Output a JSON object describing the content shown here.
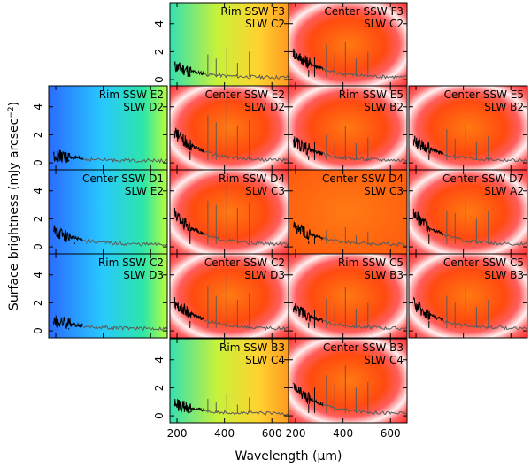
{
  "chart_data": {
    "type": "line",
    "title": "",
    "xlabel": "Wavelength (μm)",
    "ylabel": "Surface brightness (mJy arcsec^-2)",
    "xlabel_parts": {
      "pre": "Wavelength (",
      "mu": "μ",
      "post": "m)"
    },
    "ylabel_parts": {
      "pre": "Surface brightness (mJy arcsec",
      "exp": "−2",
      "post": ")"
    },
    "xlim": [
      170,
      670
    ],
    "ylim": [
      -0.5,
      5.5
    ],
    "xticks": [
      200,
      400,
      600
    ],
    "yticks": [
      0,
      2,
      4
    ],
    "colors": {
      "ssw_line": "#000000",
      "slw_line": "#5a5a5a",
      "hot": "#ff2828",
      "warm": "#ff7a12",
      "cool": "#28c8ff"
    },
    "rows": [
      1,
      2,
      3,
      4,
      5
    ],
    "cols": [
      1,
      2,
      3,
      4
    ],
    "panels": [
      {
        "id": "p11",
        "row": 1,
        "col": 2,
        "line1": "Rim SSW F3",
        "line2": "SLW C2",
        "bg": "yellow-green",
        "cont": 0.8,
        "peaks": [
          0.4,
          1.3,
          1.8,
          1.5,
          2.3,
          1.2,
          2.0
        ]
      },
      {
        "id": "p12",
        "row": 1,
        "col": 3,
        "line1": "Center SSW F3",
        "line2": "SLW C2",
        "bg": "shell",
        "cont": 1.8,
        "peaks": [
          0.7,
          1.6,
          2.5,
          1.8,
          2.7,
          1.5,
          2.0
        ]
      },
      {
        "id": "p21",
        "row": 2,
        "col": 1,
        "line1": "Rim SSW E2",
        "line2": "SLW D2",
        "bg": "blue-green",
        "cont": 0.4,
        "peaks": [
          0.1,
          0.2,
          0.2,
          0.2,
          0.3,
          0.1,
          0.2
        ]
      },
      {
        "id": "p22",
        "row": 2,
        "col": 2,
        "line1": "Center SSW E2",
        "line2": "SLW D2",
        "bg": "shell",
        "cont": 2.0,
        "peaks": [
          0.8,
          2.6,
          3.4,
          2.9,
          4.8,
          2.6,
          3.0
        ]
      },
      {
        "id": "p23",
        "row": 2,
        "col": 3,
        "line1": "Rim SSW E5",
        "line2": "SLW B2",
        "bg": "shell",
        "cont": 1.4,
        "peaks": [
          0.5,
          1.5,
          2.1,
          1.6,
          2.6,
          1.4,
          1.8
        ]
      },
      {
        "id": "p24",
        "row": 2,
        "col": 4,
        "line1": "Center SSW E5",
        "line2": "SLW B2",
        "bg": "shell",
        "cont": 1.5,
        "peaks": [
          0.6,
          1.6,
          2.4,
          1.7,
          2.8,
          1.5,
          1.9
        ]
      },
      {
        "id": "p31",
        "row": 3,
        "col": 1,
        "line1": "Center SSW D1",
        "line2": "SLW E2",
        "bg": "blue-green",
        "cont": 1.0,
        "peaks": [
          0.2,
          0.3,
          0.3,
          0.2,
          0.3,
          0.2,
          0.2
        ]
      },
      {
        "id": "p32",
        "row": 3,
        "col": 2,
        "line1": "Rim SSW D4",
        "line2": "SLW C3",
        "bg": "shell",
        "cont": 2.2,
        "peaks": [
          1.2,
          2.8,
          3.3,
          3.0,
          4.4,
          2.8,
          3.1
        ]
      },
      {
        "id": "p33",
        "row": 3,
        "col": 3,
        "line1": "Center SSW D4",
        "line2": "SLW C3",
        "bg": "orange",
        "cont": 1.4,
        "peaks": [
          0.4,
          0.8,
          1.2,
          1.0,
          1.4,
          0.8,
          1.1
        ]
      },
      {
        "id": "p34",
        "row": 3,
        "col": 4,
        "line1": "Center SSW D7",
        "line2": "SLW A2",
        "bg": "shell",
        "cont": 2.2,
        "peaks": [
          0.9,
          1.9,
          2.6,
          2.4,
          3.3,
          2.0,
          2.6
        ]
      },
      {
        "id": "p41",
        "row": 4,
        "col": 1,
        "line1": "Rim SSW C2",
        "line2": "SLW D3",
        "bg": "blue-green",
        "cont": 0.6,
        "peaks": [
          0.1,
          0.2,
          0.2,
          0.2,
          0.3,
          0.1,
          0.2
        ]
      },
      {
        "id": "p42",
        "row": 4,
        "col": 2,
        "line1": "Center SSW C2",
        "line2": "SLW D3",
        "bg": "shell",
        "cont": 1.9,
        "peaks": [
          0.7,
          2.4,
          3.2,
          2.5,
          4.0,
          2.2,
          2.7
        ]
      },
      {
        "id": "p43",
        "row": 4,
        "col": 3,
        "line1": "Rim SSW C5",
        "line2": "SLW B3",
        "bg": "shell",
        "cont": 1.6,
        "peaks": [
          0.6,
          1.5,
          2.3,
          1.8,
          3.1,
          1.6,
          2.0
        ]
      },
      {
        "id": "p44",
        "row": 4,
        "col": 4,
        "line1": "Center SSW C5",
        "line2": "SLW B3",
        "bg": "shell",
        "cont": 1.8,
        "peaks": [
          0.7,
          1.7,
          2.5,
          2.0,
          3.2,
          1.7,
          2.2
        ]
      },
      {
        "id": "p52",
        "row": 5,
        "col": 2,
        "line1": "Rim SSW B3",
        "line2": "SLW C4",
        "bg": "yellow-green",
        "cont": 0.7,
        "peaks": [
          0.3,
          0.8,
          1.2,
          1.0,
          1.6,
          0.8,
          1.3
        ]
      },
      {
        "id": "p53",
        "row": 5,
        "col": 3,
        "line1": "Center SSW B3",
        "line2": "SLW C4",
        "bg": "shell",
        "cont": 1.9,
        "peaks": [
          0.8,
          2.0,
          2.9,
          2.3,
          3.6,
          2.0,
          2.4
        ]
      }
    ]
  }
}
